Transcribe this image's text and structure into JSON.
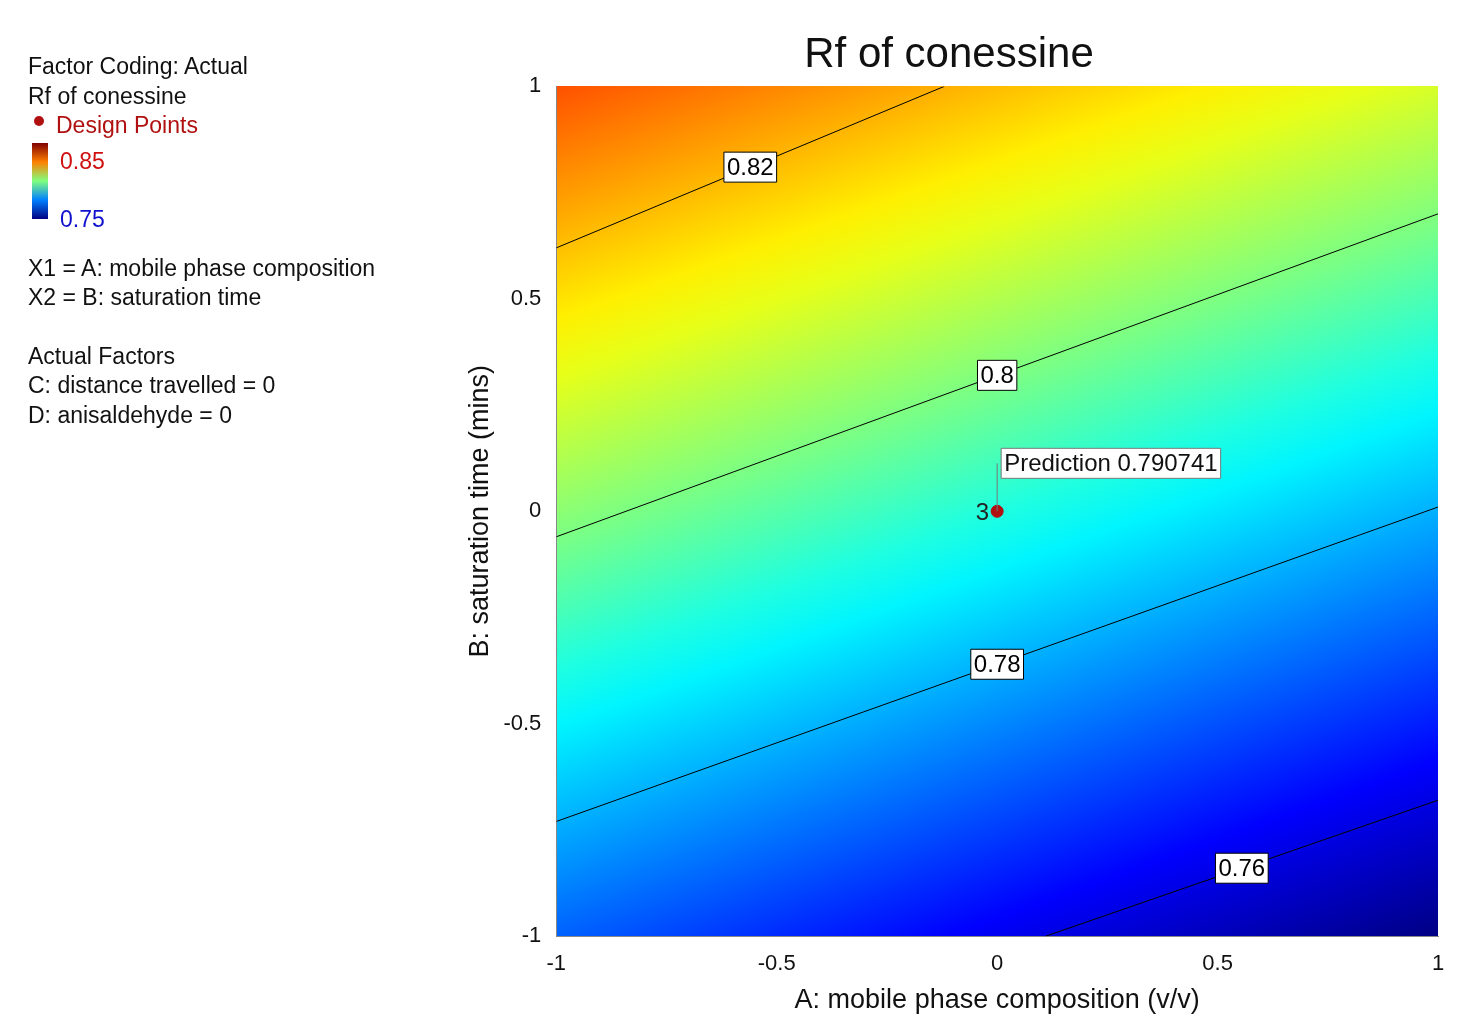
{
  "chart_data": {
    "type": "line",
    "title": "Rf of conessine",
    "xlabel": "A: mobile phase composition (v/v)",
    "ylabel": "B: saturation time (mins)",
    "clabel": "Rf of conessine",
    "clim": [
      0.75,
      0.85
    ],
    "cticks": [
      0.75,
      0.85
    ],
    "xlim": [
      -1,
      1
    ],
    "ylim": [
      -1,
      1
    ],
    "xticks": [
      -1,
      -0.5,
      0,
      0.5,
      1
    ],
    "yticks": [
      -1,
      -0.5,
      0,
      0.5,
      1
    ],
    "grid": false,
    "legend": "left",
    "series": [
      {
        "name": "0.82",
        "type": "line",
        "color": "#000000",
        "x": [
          -1,
          -0.12
        ],
        "values": [
          0.62,
          1
        ]
      },
      {
        "name": "0.8",
        "type": "line",
        "color": "#000000",
        "x": [
          -1,
          1
        ],
        "values": [
          -0.06,
          0.7
        ]
      },
      {
        "name": "0.78",
        "type": "line",
        "color": "#000000",
        "x": [
          -1,
          1
        ],
        "values": [
          -0.73,
          0.01
        ]
      },
      {
        "name": "0.76",
        "type": "line",
        "color": "#000000",
        "x": [
          0.11,
          1
        ],
        "values": [
          -1,
          -0.68
        ]
      },
      {
        "name": "Design Points",
        "type": "scatter",
        "color": "#b01010",
        "x": [
          0
        ],
        "values": [
          0
        ]
      }
    ],
    "annotations": [
      "Factor Coding: Actual",
      "X1 = A: mobile phase composition",
      "X2 = B: saturation time",
      "Actual Factors",
      "C: distance travelled = 0",
      "D: anisaldehyde = 0",
      {
        "text": "3",
        "x": 0,
        "y": 0
      },
      {
        "text": "Prediction 0.790741",
        "x": 0,
        "y": 0
      }
    ]
  }
}
